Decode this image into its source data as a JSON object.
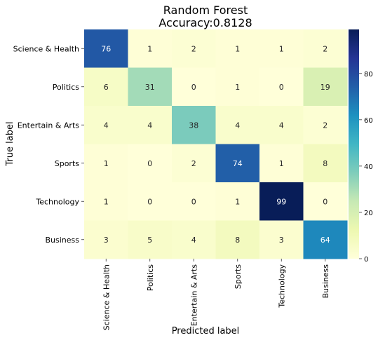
{
  "chart_data": {
    "type": "heatmap",
    "title": "Random Forest",
    "subtitle": "Accuracy:0.8128",
    "xlabel": "Predicted label",
    "ylabel": "True label",
    "x_categories": [
      "Science & Health",
      "Politics",
      "Entertain & Arts",
      "Sports",
      "Technology",
      "Business"
    ],
    "y_categories": [
      "Science & Health",
      "Politics",
      "Entertain & Arts",
      "Sports",
      "Technology",
      "Business"
    ],
    "values": [
      [
        76,
        1,
        2,
        1,
        1,
        2
      ],
      [
        6,
        31,
        0,
        1,
        0,
        19
      ],
      [
        4,
        4,
        38,
        4,
        4,
        2
      ],
      [
        1,
        0,
        2,
        74,
        1,
        8
      ],
      [
        1,
        0,
        0,
        1,
        99,
        0
      ],
      [
        3,
        5,
        4,
        8,
        3,
        64
      ]
    ],
    "colorbar": {
      "min": 0,
      "max": 99,
      "ticks": [
        0,
        20,
        40,
        60,
        80
      ]
    },
    "colormap": "YlGnBu",
    "colors": [
      "#ffffd9",
      "#edf8b1",
      "#c7e9b4",
      "#7fcdbb",
      "#41b6c4",
      "#1d91c0",
      "#225ea8",
      "#253494",
      "#081d58"
    ]
  }
}
